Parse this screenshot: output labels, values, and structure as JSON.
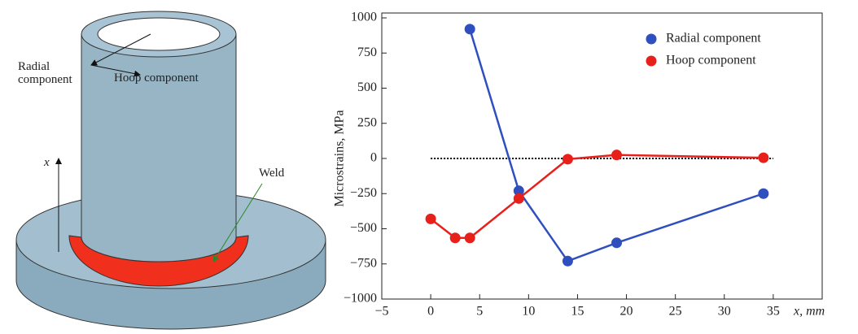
{
  "diagram": {
    "labels": {
      "radial": "Radial component",
      "hoop": "Hoop component",
      "x": "x",
      "weld": "Weld"
    }
  },
  "chart_data": {
    "type": "line",
    "x_label": "x, mm",
    "y_label": "Microstrains, MPa",
    "xlim": [
      -5,
      40
    ],
    "ylim": [
      -1000,
      1000
    ],
    "xticks": [
      {
        "value": -5,
        "label": "−5"
      },
      0,
      5,
      10,
      15,
      20,
      25,
      30,
      35
    ],
    "yticks": [
      1000,
      750,
      500,
      250,
      0,
      {
        "value": -250,
        "label": "−250"
      },
      {
        "value": -500,
        "label": "−500"
      },
      {
        "value": -750,
        "label": "−750"
      },
      {
        "value": -1000,
        "label": "−1000"
      }
    ],
    "zero_line": {
      "y": 0,
      "x": [
        0,
        35
      ],
      "color": "#000000"
    },
    "legend": "upper right",
    "series": [
      {
        "name": "Radial component",
        "color": "#2f4fbf",
        "x": [
          4,
          9,
          14,
          19,
          34
        ],
        "values": [
          920,
          -230,
          -730,
          -600,
          -250
        ]
      },
      {
        "name": "Hoop component",
        "color": "#e8201c",
        "x": [
          0,
          2.5,
          4,
          9,
          14,
          19,
          34
        ],
        "values": [
          -430,
          -565,
          -565,
          -285,
          -5,
          25,
          5
        ]
      }
    ]
  }
}
